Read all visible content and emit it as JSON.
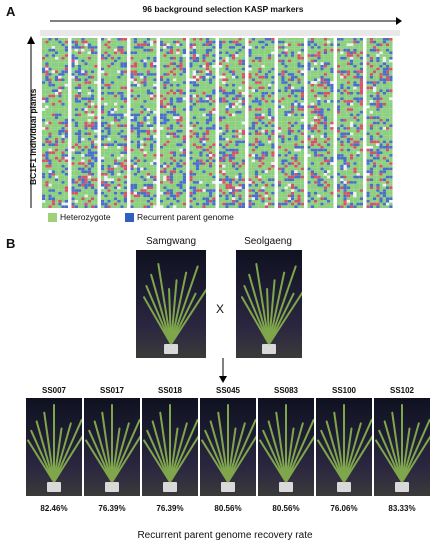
{
  "panel_a": {
    "letter": "A",
    "markers_title": "96 background selection KASP markers",
    "y_axis_label": "BC1F1 individual plants",
    "legend": [
      {
        "label": "Heterozygote",
        "color": "#9fd17a"
      },
      {
        "label": "Recurrent parent genome",
        "color": "#2f5fbf"
      }
    ],
    "genotype_colors": {
      "heterozygote": "#8ccf7e",
      "recurrent": "#4a6fc9",
      "donor": "#d4546a",
      "missing": "#f0f0f0"
    }
  },
  "panel_b": {
    "letter": "B",
    "parents": [
      {
        "name": "Samgwang"
      },
      {
        "name": "Seolgaeng"
      }
    ],
    "cross_symbol": "X",
    "lines": [
      {
        "name": "SS007",
        "recovery": "82.46%"
      },
      {
        "name": "SS017",
        "recovery": "76.39%"
      },
      {
        "name": "SS018",
        "recovery": "76.39%"
      },
      {
        "name": "SS045",
        "recovery": "80.56%"
      },
      {
        "name": "SS083",
        "recovery": "80.56%"
      },
      {
        "name": "SS100",
        "recovery": "76.06%"
      },
      {
        "name": "SS102",
        "recovery": "83.33%"
      }
    ],
    "caption": "Recurrent parent genome recovery rate"
  }
}
